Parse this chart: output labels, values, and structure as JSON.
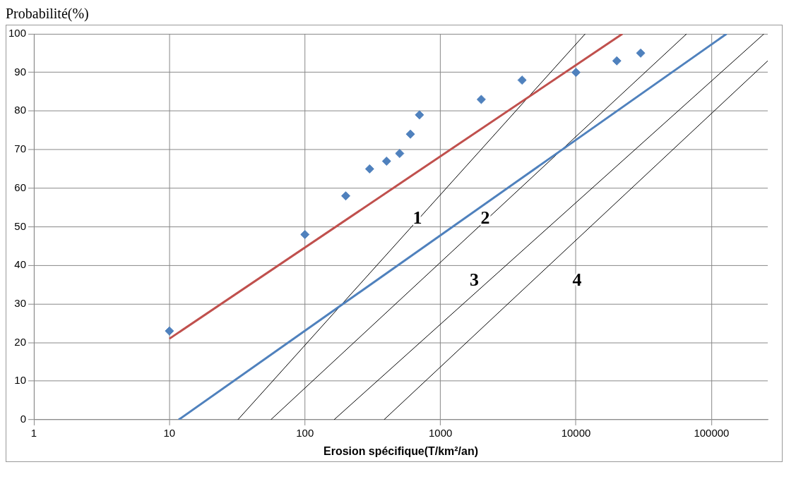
{
  "chart_data": {
    "type": "scatter",
    "ylabel": "Probabilité(%)",
    "xlabel": "Erosion spécifique(T/km²/an)",
    "log": "x",
    "grid": true,
    "legend": false,
    "xlim": [
      1,
      260000
    ],
    "xticks": [
      1,
      10,
      100,
      1000,
      10000,
      100000
    ],
    "ylim": [
      0,
      100
    ],
    "yticks": [
      0,
      10,
      20,
      30,
      40,
      50,
      60,
      70,
      80,
      90,
      100
    ],
    "series": [
      {
        "type": "scatter",
        "color": "#4f81bd",
        "marker": "diamond",
        "x": [
          10,
          100,
          200,
          300,
          400,
          500,
          600,
          700,
          2000,
          4000,
          10000,
          20000,
          30000
        ],
        "values": [
          23,
          48,
          58,
          65,
          67,
          69,
          74,
          79,
          83,
          88,
          90,
          93,
          95
        ]
      },
      {
        "type": "line",
        "color": "#c0504d",
        "marker": "none",
        "x": [
          10,
          22000
        ],
        "values": [
          21,
          100
        ]
      },
      {
        "type": "line",
        "color": "#4f81bd",
        "marker": "none",
        "x": [
          11.7,
          129000
        ],
        "values": [
          0,
          100
        ]
      },
      {
        "type": "line",
        "color": "#000000",
        "marker": "none",
        "x": [
          32,
          11700
        ],
        "values": [
          0,
          100
        ]
      },
      {
        "type": "line",
        "color": "#000000",
        "marker": "none",
        "x": [
          56,
          65500
        ],
        "values": [
          0,
          100
        ]
      },
      {
        "type": "line",
        "color": "#000000",
        "marker": "none",
        "x": [
          164,
          244000
        ],
        "values": [
          0,
          100
        ]
      },
      {
        "type": "line",
        "color": "#000000",
        "marker": "none",
        "x": [
          383,
          260000
        ],
        "values": [
          0,
          93
        ]
      }
    ],
    "annotations": [
      {
        "text": "1",
        "x": 675,
        "y": 52
      },
      {
        "text": "2",
        "x": 2140,
        "y": 52
      },
      "3",
      "4"
    ]
  }
}
